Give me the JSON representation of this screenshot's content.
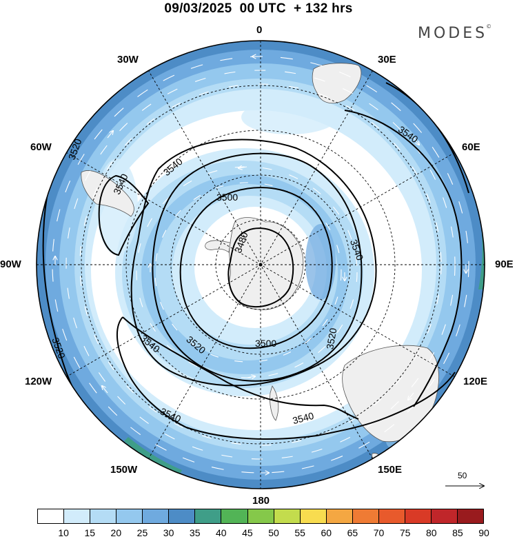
{
  "title": "09/03/2025  00 UTC  + 132 hrs",
  "brand": {
    "text": "MODES",
    "mark": "©"
  },
  "longitude_labels": [
    "0",
    "30E",
    "60E",
    "90E",
    "120E",
    "150E",
    "180",
    "150W",
    "120W",
    "90W",
    "60W",
    "30W"
  ],
  "contours": [
    {
      "value": "3480"
    },
    {
      "value": "3500"
    },
    {
      "value": "3520"
    },
    {
      "value": "3540"
    }
  ],
  "contour_labels": [
    "3480",
    "3500",
    "3500",
    "3520",
    "3520",
    "3520",
    "3520",
    "3540",
    "3540",
    "3540",
    "3540",
    "3540",
    "3540",
    "3540"
  ],
  "vector_reference": {
    "label": "50",
    "icon": "arrow-right-icon"
  },
  "colorbar": {
    "labels": [
      "10",
      "15",
      "20",
      "25",
      "30",
      "35",
      "40",
      "45",
      "50",
      "55",
      "60",
      "65",
      "70",
      "75",
      "80",
      "85",
      "90"
    ],
    "colors": [
      "#ffffff",
      "#d2ecfb",
      "#b4dcf5",
      "#94c8ee",
      "#6faadf",
      "#4d8cc6",
      "#3f9e88",
      "#52b456",
      "#85c84a",
      "#c3dc4d",
      "#f8dc4f",
      "#f4a742",
      "#ef7b34",
      "#e85a2c",
      "#d93a26",
      "#c0262a",
      "#991b1e"
    ]
  }
}
